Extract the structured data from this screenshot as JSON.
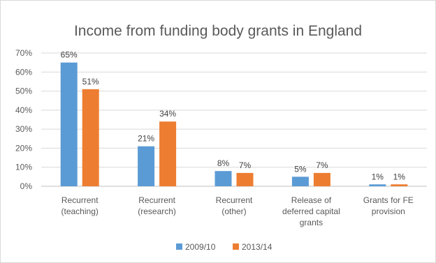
{
  "chart_data": {
    "type": "bar",
    "title": "Income from funding body grants in England",
    "categories": [
      [
        "Recurrent",
        "(teaching)"
      ],
      [
        "Recurrent",
        "(research)"
      ],
      [
        "Recurrent",
        "(other)"
      ],
      [
        "Release of",
        "deferred capital",
        "grants"
      ],
      [
        "Grants for FE",
        "provision"
      ]
    ],
    "series": [
      {
        "name": "2009/10",
        "values": [
          65,
          21,
          8,
          5,
          1
        ],
        "labels": [
          "65%",
          "21%",
          "8%",
          "5%",
          "1%"
        ],
        "color": "#5b9bd5"
      },
      {
        "name": "2013/14",
        "values": [
          51,
          34,
          7,
          7,
          1
        ],
        "labels": [
          "51%",
          "34%",
          "7%",
          "7%",
          "1%"
        ],
        "color": "#ed7d31"
      }
    ],
    "ylim": [
      0,
      70
    ],
    "yticks": [
      "0%",
      "10%",
      "20%",
      "30%",
      "40%",
      "50%",
      "60%",
      "70%"
    ],
    "grid": true,
    "legend": "bottom",
    "xlabel": "",
    "ylabel": ""
  }
}
